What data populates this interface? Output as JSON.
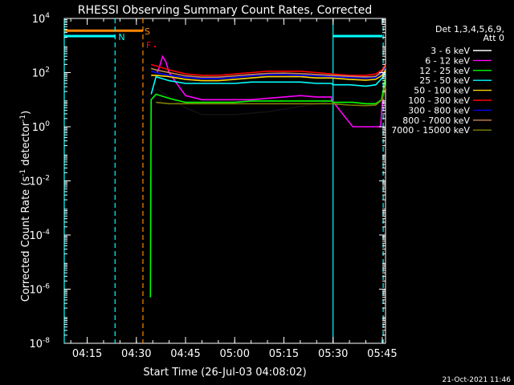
{
  "chart_data": {
    "type": "line",
    "title": "RHESSI Observing Summary Count Rates, Corrected",
    "xlabel": "Start Time (26-Jul-03 04:08:02)",
    "ylabel_main": "Corrected Count Rate (s",
    "ylabel_sup1": "-1",
    "ylabel_mid": " detector",
    "ylabel_sup2": "-1",
    "ylabel_end": ")",
    "y_scale": "log",
    "ylim_exp": [
      -8,
      4
    ],
    "xlim_min": [
      8.0,
      106.0
    ],
    "x_ticks": [
      {
        "min": 15,
        "label": "04:15"
      },
      {
        "min": 30,
        "label": "04:30"
      },
      {
        "min": 45,
        "label": "04:45"
      },
      {
        "min": 60,
        "label": "05:00"
      },
      {
        "min": 75,
        "label": "05:15"
      },
      {
        "min": 90,
        "label": "05:30"
      },
      {
        "min": 105,
        "label": "05:45"
      }
    ],
    "y_ticks": [
      {
        "exp": 4,
        "base": "10",
        "sup": "4"
      },
      {
        "exp": 2,
        "base": "10",
        "sup": "2"
      },
      {
        "exp": 0,
        "base": "10",
        "sup": "0"
      },
      {
        "exp": -2,
        "base": "10",
        "sup": "-2"
      },
      {
        "exp": -4,
        "base": "10",
        "sup": "-4"
      },
      {
        "exp": -6,
        "base": "10",
        "sup": "-6"
      },
      {
        "exp": -8,
        "base": "10",
        "sup": "-8"
      }
    ],
    "legend_title_1": "Det 1,3,4,5,6,9,",
    "legend_title_2": "Att 0",
    "legend_position": "top-right",
    "series": [
      {
        "name": "3 - 6 keV",
        "color": "#000000",
        "legend_color": "#ffffff",
        "points": [
          [
            36.3,
            1.4
          ],
          [
            40,
            1.1
          ],
          [
            45,
            0.7
          ],
          [
            50,
            0.45
          ],
          [
            55,
            0.45
          ],
          [
            60,
            0.45
          ],
          [
            65,
            0.5
          ],
          [
            70,
            0.55
          ],
          [
            75,
            0.65
          ],
          [
            80,
            0.75
          ],
          [
            85,
            0.85
          ],
          [
            89.5,
            0.95
          ]
        ]
      },
      {
        "name": "6 - 12 keV",
        "color": "#ff00ff",
        "points": [
          [
            36.3,
            2.0
          ],
          [
            37,
            2.2
          ],
          [
            38,
            2.6
          ],
          [
            39,
            2.4
          ],
          [
            40,
            2.0
          ],
          [
            42,
            1.65
          ],
          [
            45,
            1.15
          ],
          [
            50,
            1.0
          ],
          [
            55,
            1.0
          ],
          [
            60,
            1.0
          ],
          [
            65,
            1.0
          ],
          [
            70,
            1.05
          ],
          [
            75,
            1.1
          ],
          [
            80,
            1.15
          ],
          [
            85,
            1.1
          ],
          [
            89.5,
            1.1
          ],
          [
            89.5,
            1.0
          ],
          [
            96,
            0.0
          ],
          [
            104.5,
            0.0
          ],
          [
            105.2,
            1.2
          ],
          [
            105.7,
            1.6
          ]
        ]
      },
      {
        "name": "12 - 25 keV",
        "color": "#00ff00",
        "points": [
          [
            34.3,
            -6.3
          ],
          [
            34.5,
            1.0
          ],
          [
            36,
            1.2
          ],
          [
            40,
            1.05
          ],
          [
            45,
            0.9
          ],
          [
            50,
            0.9
          ],
          [
            55,
            0.9
          ],
          [
            60,
            0.9
          ],
          [
            65,
            0.95
          ],
          [
            70,
            0.95
          ],
          [
            75,
            0.95
          ],
          [
            80,
            0.95
          ],
          [
            85,
            0.95
          ],
          [
            89.5,
            0.95
          ],
          [
            90,
            0.9
          ],
          [
            96,
            0.9
          ],
          [
            100,
            0.85
          ],
          [
            103,
            0.85
          ],
          [
            104.8,
            1.0
          ],
          [
            105.5,
            1.5
          ],
          [
            105.9,
            1.75
          ]
        ]
      },
      {
        "name": "25 - 50 keV",
        "color": "#00ffff",
        "points": [
          [
            34.5,
            1.2
          ],
          [
            36,
            1.85
          ],
          [
            40,
            1.7
          ],
          [
            45,
            1.6
          ],
          [
            50,
            1.6
          ],
          [
            55,
            1.6
          ],
          [
            60,
            1.6
          ],
          [
            65,
            1.65
          ],
          [
            70,
            1.65
          ],
          [
            75,
            1.65
          ],
          [
            80,
            1.65
          ],
          [
            85,
            1.6
          ],
          [
            89.5,
            1.6
          ],
          [
            90,
            1.55
          ],
          [
            95,
            1.55
          ],
          [
            100,
            1.5
          ],
          [
            103,
            1.55
          ],
          [
            105,
            1.8
          ],
          [
            106,
            2.0
          ]
        ]
      },
      {
        "name": "50 - 100 keV",
        "color": "#ffd700",
        "points": [
          [
            34.5,
            1.9
          ],
          [
            36,
            1.9
          ],
          [
            40,
            1.85
          ],
          [
            45,
            1.75
          ],
          [
            50,
            1.7
          ],
          [
            55,
            1.7
          ],
          [
            60,
            1.75
          ],
          [
            65,
            1.8
          ],
          [
            70,
            1.85
          ],
          [
            75,
            1.85
          ],
          [
            80,
            1.85
          ],
          [
            85,
            1.8
          ],
          [
            89.5,
            1.8
          ],
          [
            95,
            1.75
          ],
          [
            100,
            1.72
          ],
          [
            103,
            1.75
          ],
          [
            105,
            1.9
          ],
          [
            106,
            2.1
          ]
        ]
      },
      {
        "name": "100 - 300 keV",
        "color": "#ff0000",
        "points": [
          [
            34.5,
            2.3
          ],
          [
            36,
            2.25
          ],
          [
            40,
            2.1
          ],
          [
            45,
            1.95
          ],
          [
            50,
            1.9
          ],
          [
            55,
            1.9
          ],
          [
            60,
            1.95
          ],
          [
            65,
            2.0
          ],
          [
            70,
            2.05
          ],
          [
            75,
            2.05
          ],
          [
            80,
            2.05
          ],
          [
            85,
            2.0
          ],
          [
            89.5,
            1.95
          ],
          [
            95,
            1.9
          ],
          [
            100,
            1.9
          ],
          [
            103,
            1.95
          ],
          [
            105,
            2.1
          ],
          [
            106,
            2.3
          ]
        ]
      },
      {
        "name": "300 - 800 keV",
        "color": "#0000ff",
        "points": [
          [
            34.5,
            2.05
          ],
          [
            36,
            2.0
          ],
          [
            40,
            1.9
          ],
          [
            45,
            1.82
          ],
          [
            50,
            1.78
          ],
          [
            55,
            1.78
          ],
          [
            60,
            1.82
          ],
          [
            65,
            1.88
          ],
          [
            70,
            1.92
          ],
          [
            75,
            1.92
          ],
          [
            80,
            1.9
          ],
          [
            85,
            1.88
          ],
          [
            89.5,
            1.85
          ],
          [
            95,
            1.82
          ],
          [
            100,
            1.8
          ],
          [
            103,
            1.82
          ],
          [
            105,
            2.0
          ],
          [
            106,
            2.2
          ]
        ]
      },
      {
        "name": "800 - 7000 keV",
        "color": "#cc8855",
        "points": [
          [
            34.5,
            2.15
          ],
          [
            36,
            2.1
          ],
          [
            40,
            2.0
          ],
          [
            45,
            1.88
          ],
          [
            50,
            1.83
          ],
          [
            55,
            1.83
          ],
          [
            60,
            1.88
          ],
          [
            65,
            1.93
          ],
          [
            70,
            1.97
          ],
          [
            75,
            1.98
          ],
          [
            80,
            1.96
          ],
          [
            85,
            1.93
          ],
          [
            89.5,
            1.9
          ],
          [
            95,
            1.86
          ],
          [
            100,
            1.84
          ],
          [
            103,
            1.86
          ],
          [
            105,
            2.05
          ],
          [
            106,
            2.25
          ]
        ]
      },
      {
        "name": "7000 - 15000 keV",
        "color": "#808000",
        "points": [
          [
            36,
            0.9
          ],
          [
            40,
            0.85
          ],
          [
            45,
            0.85
          ],
          [
            50,
            0.85
          ],
          [
            55,
            0.85
          ],
          [
            60,
            0.85
          ],
          [
            65,
            0.85
          ],
          [
            70,
            0.85
          ],
          [
            75,
            0.85
          ],
          [
            80,
            0.85
          ],
          [
            85,
            0.85
          ],
          [
            89.5,
            0.85
          ],
          [
            95,
            0.8
          ],
          [
            100,
            0.78
          ],
          [
            103,
            0.8
          ],
          [
            105,
            1.0
          ],
          [
            106,
            1.5
          ]
        ]
      }
    ],
    "state_bars": [
      {
        "label": "N",
        "color": "#00ffff",
        "x0": 8.0,
        "x1": 23.5,
        "y_exp": 3.35,
        "label_min": 24.5
      },
      {
        "label": "S",
        "color": "#ff8800",
        "x0": 8.0,
        "x1": 32.0,
        "y_exp": 3.55,
        "label_min": 32.5
      },
      {
        "label": "",
        "color": "#00ffff",
        "x0": 90.0,
        "x1": 105.0,
        "y_exp": 3.35,
        "label_min": 0
      }
    ],
    "flare_label": "F",
    "flare_label_min": 33.0,
    "flare_color": "#ff0000",
    "vlines": [
      {
        "min": 8.0,
        "color": "#00ffff",
        "dash": false
      },
      {
        "min": 23.5,
        "color": "#00ffff",
        "dash": true
      },
      {
        "min": 32.0,
        "color": "#ff8800",
        "dash": true
      },
      {
        "min": 90.0,
        "color": "#00ffff",
        "dash": false
      },
      {
        "min": 105.3,
        "color": "#00ffff",
        "dash": true
      }
    ],
    "date_stamp": "21-Oct-2021 11:46"
  }
}
